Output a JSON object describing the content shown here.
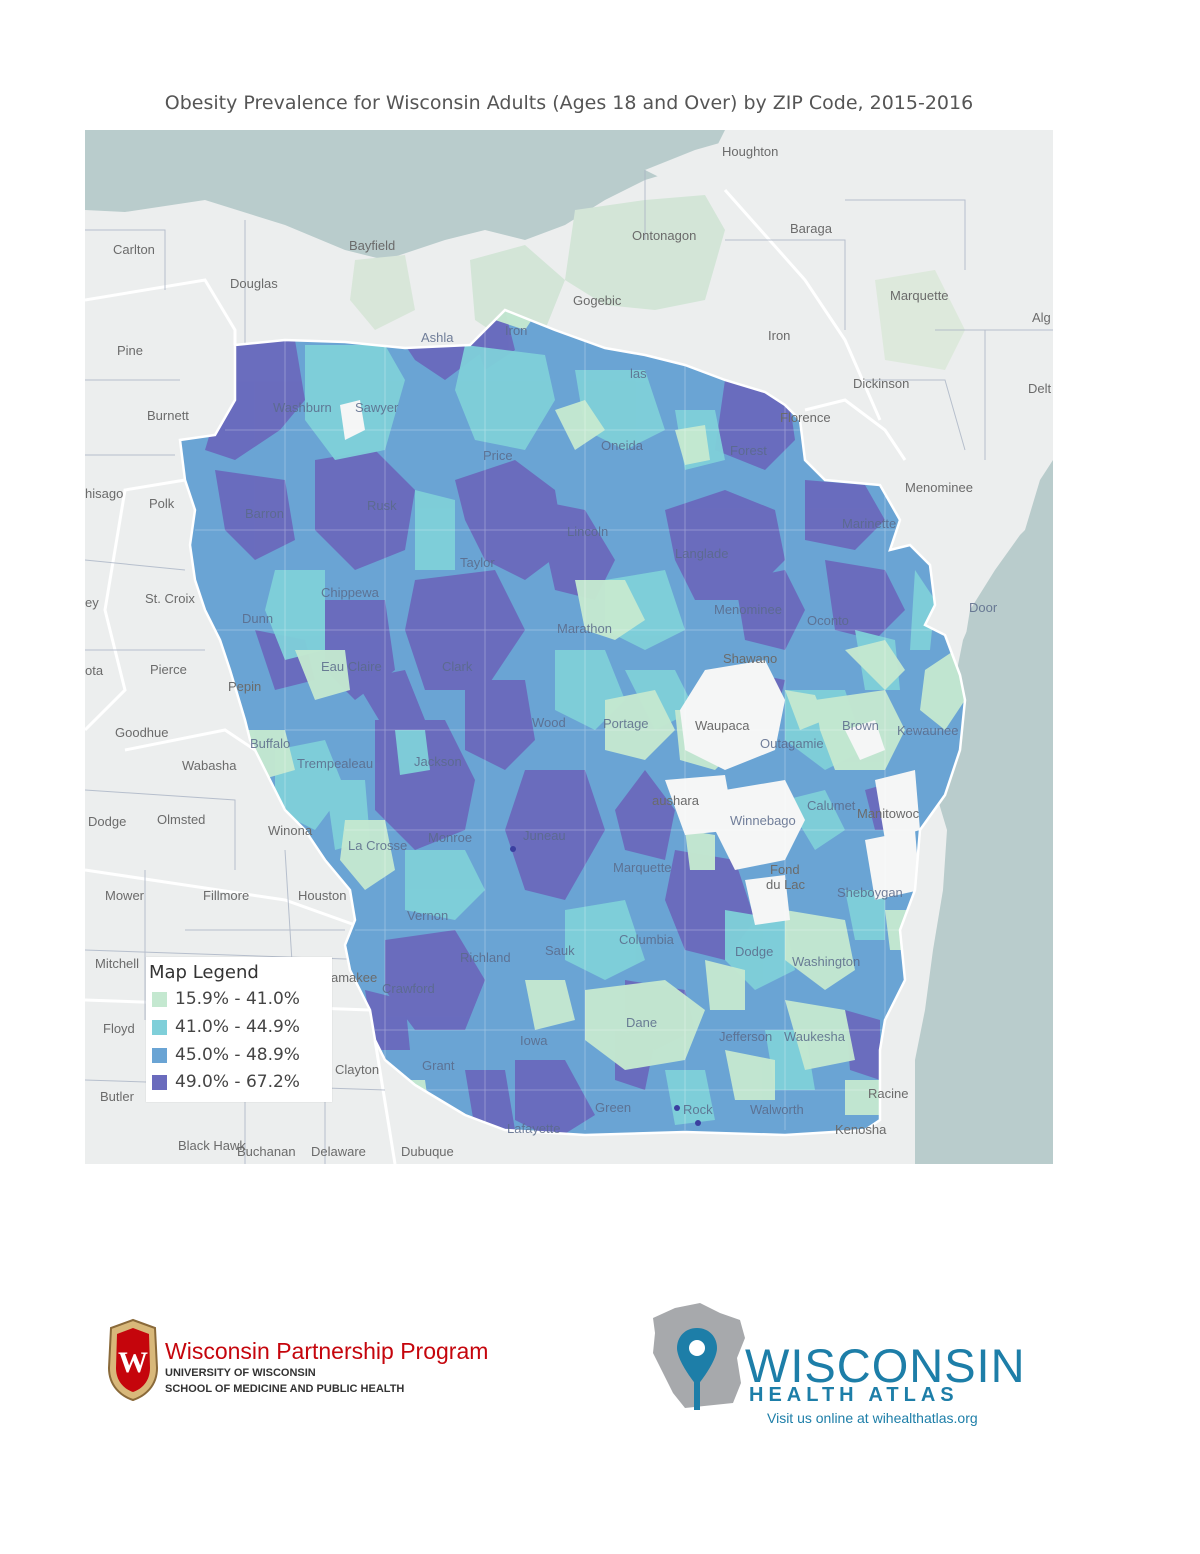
{
  "title": "Obesity Prevalence for Wisconsin Adults (Ages 18 and Over) by ZIP Code, 2015-2016",
  "legend": {
    "title": "Map Legend",
    "items": [
      {
        "label": "15.9% - 41.0%",
        "color": "#c4e8d0"
      },
      {
        "label": "41.0% - 44.9%",
        "color": "#7fcfd9"
      },
      {
        "label": "45.0% - 48.9%",
        "color": "#6aa4d4"
      },
      {
        "label": "49.0% - 67.2%",
        "color": "#6a6bbd"
      }
    ]
  },
  "colors": {
    "water": "#b9cccc",
    "land": "#eceeee",
    "nodata": "#f5f6f6",
    "border": "#ffffff"
  },
  "map_labels": {
    "houghton": "Houghton",
    "baraga": "Baraga",
    "ontonagon": "Ontonagon",
    "marquette": "Marquette",
    "alg": "Alg",
    "gogebic": "Gogebic",
    "iron_mi": "Iron",
    "dickinson": "Dickinson",
    "delt": "Delt",
    "menominee_mi": "Menominee",
    "carlton": "Carlton",
    "bayfield": "Bayfield",
    "douglas": "Douglas",
    "pine": "Pine",
    "burnett": "Burnett",
    "chisago": "hisago",
    "polk": "Polk",
    "st_croix": "St. Croix",
    "ey": "ey",
    "ota": "ota",
    "pierce": "Pierce",
    "pepin": "Pepin",
    "goodhue": "Goodhue",
    "wabasha": "Wabasha",
    "dodge_mn": "Dodge",
    "olmsted": "Olmsted",
    "winona": "Winona",
    "mower": "Mower",
    "fillmore": "Fillmore",
    "houston": "Houston",
    "mitchell": "Mitchell",
    "allamakee": "amakee",
    "floyd": "Floyd",
    "clayton": "Clayton",
    "butler": "Butler",
    "black_hawk": "Black Hawk",
    "buchanan": "Buchanan",
    "delaware": "Delaware",
    "dubuque": "Dubuque",
    "racine": "Racine",
    "kenosha": "Kenosha",
    "ashland": "Ashla",
    "iron_wi": "Iron",
    "washburn": "Washburn",
    "sawyer": "Sawyer",
    "price": "Price",
    "oneida": "Oneida",
    "vilas": "las",
    "forest": "Forest",
    "florence": "Florence",
    "marinette": "Marinette",
    "barron": "Barron",
    "rusk": "Rusk",
    "lincoln": "Lincoln",
    "taylor": "Taylor",
    "langlade": "Langlade",
    "chippewa": "Chippewa",
    "dunn": "Dunn",
    "menominee_wi": "Menominee",
    "oconto": "Oconto",
    "door": "Door",
    "marathon": "Marathon",
    "eau_claire": "Eau Claire",
    "clark": "Clark",
    "shawano": "Shawano",
    "buffalo": "Buffalo",
    "wood": "Wood",
    "portage": "Portage",
    "waupaca": "Waupaca",
    "outagamie": "Outagamie",
    "brown": "Brown",
    "kewaunee": "Kewaunee",
    "trempealeau": "Trempealeau",
    "jackson": "Jackson",
    "waushara": "aushara",
    "winnebago": "Winnebago",
    "calumet": "Calumet",
    "manitowoc": "Manitowoc",
    "la_crosse": "La Crosse",
    "monroe": "Monroe",
    "juneau": "Juneau",
    "marquette_wi": "Marquette",
    "fond_du_lac": "Fond du Lac",
    "sheboygan": "Sheboygan",
    "vernon": "Vernon",
    "richland": "Richland",
    "sauk": "Sauk",
    "columbia": "Columbia",
    "dodge_wi": "Dodge",
    "washington": "Washington",
    "crawford": "Crawford",
    "iowa": "Iowa",
    "dane": "Dane",
    "jefferson": "Jefferson",
    "waukesha": "Waukesha",
    "grant": "Grant",
    "lafayette": "Lafayette",
    "green": "Green",
    "rock": "Rock",
    "walworth": "Walworth"
  },
  "logos": {
    "wpp_name": "Wisconsin Partnership Program",
    "wpp_sub1": "UNIVERSITY OF WISCONSIN",
    "wpp_sub2": "SCHOOL OF MEDICINE AND PUBLIC HEALTH",
    "crest_letter": "W",
    "wha_name": "WISCONSIN",
    "wha_sub": "HEALTH ATLAS",
    "wha_url": "Visit us online at wihealthatlas.org"
  }
}
